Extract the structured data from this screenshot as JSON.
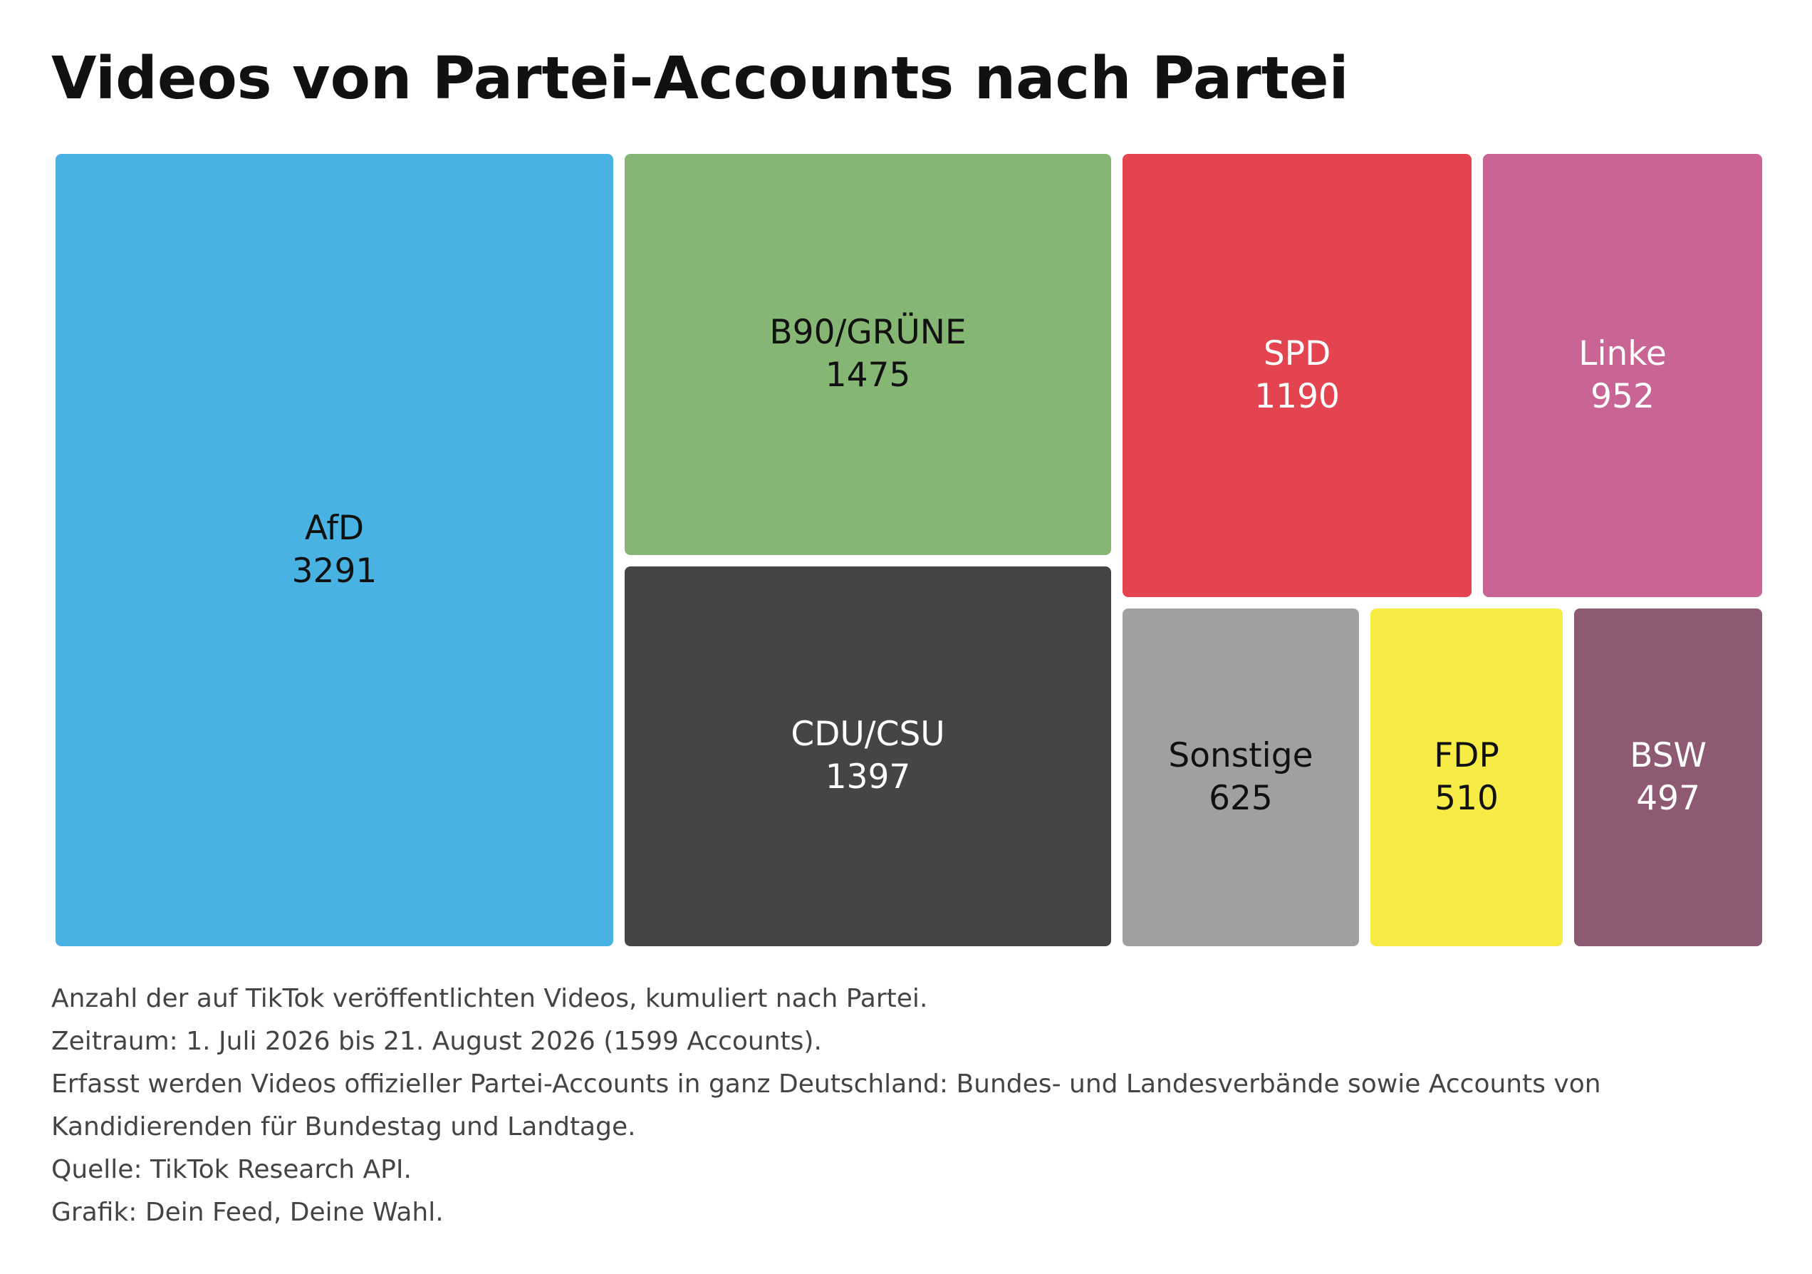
{
  "chart_data": {
    "type": "treemap",
    "title": "Videos von Partei-Accounts nach Partei",
    "tiles": [
      {
        "key": "afd",
        "label": "AfD",
        "value": 3291,
        "color": "#48B3E2",
        "text_color": "#111111"
      },
      {
        "key": "gruene",
        "label": "B90/GRÜNE",
        "value": 1475,
        "color": "#85B673",
        "text_color": "#111111"
      },
      {
        "key": "cdu",
        "label": "CDU/CSU",
        "value": 1397,
        "color": "#454545",
        "text_color": "#FFFFFF"
      },
      {
        "key": "spd",
        "label": "SPD",
        "value": 1190,
        "color": "#E44450",
        "text_color": "#FFFFFF"
      },
      {
        "key": "linke",
        "label": "Linke",
        "value": 952,
        "color": "#C86594",
        "text_color": "#FFFFFF"
      },
      {
        "key": "sonstige",
        "label": "Sonstige",
        "value": 625,
        "color": "#A0A0A0",
        "text_color": "#111111"
      },
      {
        "key": "fdp",
        "label": "FDP",
        "value": 510,
        "color": "#F7EB46",
        "text_color": "#111111"
      },
      {
        "key": "bsw",
        "label": "BSW",
        "value": 497,
        "color": "#8E5A73",
        "text_color": "#FFFFFF"
      }
    ]
  },
  "notes": {
    "line1": "Anzahl der auf TikTok veröffentlichten Videos, kumuliert nach Partei.",
    "line2": "Zeitraum: 1. Juli 2026 bis 21. August 2026 (1599 Accounts).",
    "line3": "Erfasst werden Videos offizieller Partei-Accounts in ganz Deutschland: Bundes- und Landesverbände sowie Accounts von Kandidierenden für Bundestag und Landtage.",
    "line4": "Quelle: TikTok Research API.",
    "line5": "Grafik: Dein Feed, Deine Wahl."
  }
}
